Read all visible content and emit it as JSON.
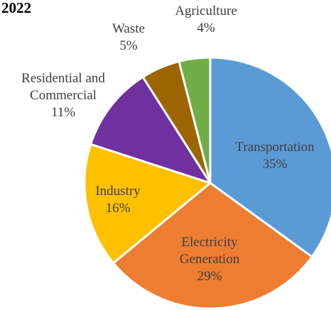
{
  "chart_data": {
    "type": "pie",
    "title": "2022",
    "slices": [
      {
        "name": "Transportation",
        "value": 35,
        "label": "35%",
        "color": "#5B9BD5"
      },
      {
        "name": "Electricity Generation",
        "value": 29,
        "label": "29%",
        "color": "#ED7D31"
      },
      {
        "name": "Industry",
        "value": 16,
        "label": "16%",
        "color": "#FFC000"
      },
      {
        "name": "Residential and Commercial",
        "value": 11,
        "label": "11%",
        "color": "#7030A0"
      },
      {
        "name": "Waste",
        "value": 5,
        "label": "5%",
        "color": "#9C6500"
      },
      {
        "name": "Agriculture",
        "value": 4,
        "label": "4%",
        "color": "#70AD47"
      }
    ]
  }
}
